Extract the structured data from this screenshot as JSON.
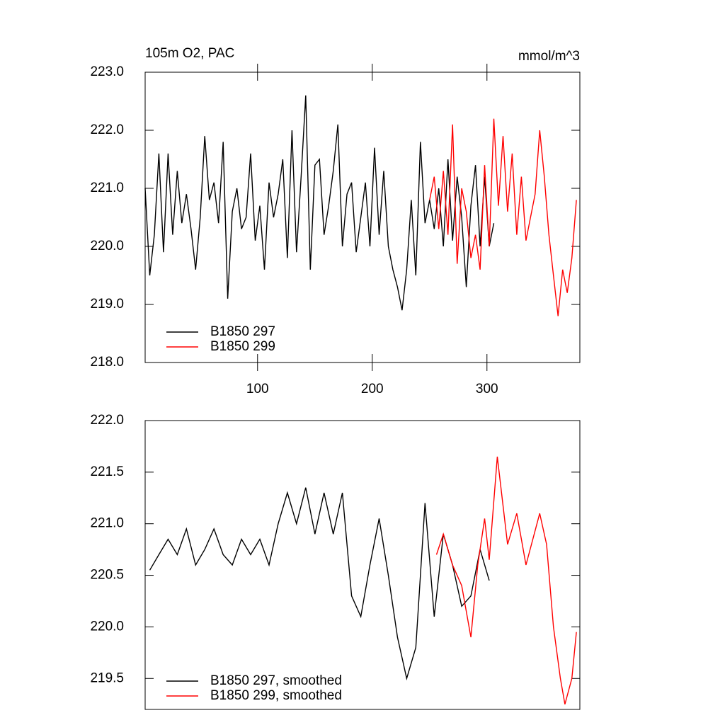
{
  "chart_data": [
    {
      "type": "line",
      "title": "105m O2, PAC",
      "units": "mmol/m^3",
      "xlim": [
        2,
        381
      ],
      "xticks": [
        100,
        200,
        300
      ],
      "ylim": [
        218,
        223
      ],
      "yticks": [
        {
          "value": 218,
          "label": "218.0"
        },
        {
          "value": 219,
          "label": "219.0"
        },
        {
          "value": 220,
          "label": "220.0"
        },
        {
          "value": 221,
          "label": "221.0"
        },
        {
          "value": 222,
          "label": "222.0"
        },
        {
          "value": 223,
          "label": "223.0"
        }
      ],
      "series": [
        {
          "name": "B1850 297",
          "color": "#000000",
          "x": [
            2,
            6,
            10,
            14,
            18,
            22,
            26,
            30,
            34,
            38,
            42,
            46,
            50,
            54,
            58,
            62,
            66,
            70,
            74,
            78,
            82,
            86,
            90,
            94,
            98,
            102,
            106,
            110,
            114,
            118,
            122,
            126,
            130,
            134,
            138,
            142,
            146,
            150,
            154,
            158,
            162,
            166,
            170,
            174,
            178,
            182,
            186,
            190,
            194,
            198,
            202,
            206,
            210,
            214,
            218,
            222,
            226,
            230,
            234,
            238,
            242,
            246,
            250,
            254,
            258,
            262,
            266,
            270,
            274,
            278,
            282,
            286,
            290,
            294,
            298,
            302,
            306
          ],
          "values": [
            221.0,
            219.5,
            220.2,
            221.6,
            219.9,
            221.6,
            220.2,
            221.3,
            220.4,
            220.9,
            220.3,
            219.6,
            220.5,
            221.9,
            220.8,
            221.1,
            220.4,
            221.8,
            219.1,
            220.6,
            221.0,
            220.3,
            220.5,
            221.6,
            220.1,
            220.7,
            219.6,
            221.1,
            220.5,
            220.9,
            221.5,
            219.8,
            222.0,
            219.9,
            221.2,
            222.6,
            219.6,
            221.4,
            221.5,
            220.2,
            220.7,
            221.3,
            222.1,
            220.0,
            220.9,
            221.1,
            219.9,
            220.5,
            221.1,
            220.0,
            221.7,
            220.2,
            221.3,
            220.0,
            219.6,
            219.3,
            218.9,
            219.6,
            220.8,
            219.5,
            221.8,
            220.4,
            220.8,
            220.3,
            221.0,
            220.0,
            221.5,
            220.1,
            221.2,
            220.5,
            219.3,
            220.7,
            221.4,
            220.0,
            221.2,
            220.0,
            220.4
          ]
        },
        {
          "name": "B1850 299",
          "color": "#ff0000",
          "x": [
            250,
            254,
            258,
            262,
            266,
            270,
            274,
            278,
            282,
            286,
            290,
            294,
            298,
            302,
            306,
            310,
            314,
            318,
            322,
            326,
            330,
            334,
            338,
            342,
            346,
            350,
            354,
            358,
            362,
            366,
            370,
            374,
            378
          ],
          "values": [
            220.8,
            221.2,
            220.3,
            221.3,
            220.2,
            222.1,
            219.7,
            221.0,
            220.6,
            219.8,
            220.2,
            219.6,
            221.4,
            220.0,
            222.2,
            220.7,
            221.9,
            220.6,
            221.6,
            220.2,
            221.2,
            220.1,
            220.5,
            220.9,
            222.0,
            221.2,
            220.2,
            219.5,
            218.8,
            219.6,
            219.2,
            219.8,
            220.8
          ]
        }
      ]
    },
    {
      "type": "line",
      "xlim": [
        2,
        381
      ],
      "ylim": [
        219.2,
        222
      ],
      "yticks": [
        219.5,
        {
          "value": 220,
          "label": "220.0"
        },
        220.5,
        {
          "value": 221,
          "label": "221.0"
        },
        221.5,
        {
          "value": 222,
          "label": "222.0"
        }
      ],
      "series": [
        {
          "name": "B1850 297, smoothed",
          "color": "#000000",
          "x": [
            6,
            14,
            22,
            30,
            38,
            46,
            54,
            62,
            70,
            78,
            86,
            94,
            102,
            110,
            118,
            126,
            134,
            142,
            150,
            158,
            166,
            174,
            182,
            190,
            198,
            206,
            214,
            222,
            230,
            238,
            246,
            254,
            262,
            270,
            278,
            286,
            294,
            302
          ],
          "values": [
            220.55,
            220.7,
            220.85,
            220.7,
            220.95,
            220.6,
            220.75,
            220.95,
            220.7,
            220.6,
            220.85,
            220.7,
            220.85,
            220.6,
            221.0,
            221.3,
            221.0,
            221.35,
            220.9,
            221.3,
            220.9,
            221.3,
            220.3,
            220.1,
            220.6,
            221.05,
            220.5,
            219.9,
            219.5,
            219.8,
            221.2,
            220.1,
            220.9,
            220.6,
            220.2,
            220.3,
            220.75,
            220.45
          ]
        },
        {
          "name": "B1850 299, smoothed",
          "color": "#ff0000",
          "x": [
            256,
            262,
            270,
            278,
            286,
            292,
            298,
            302,
            309,
            318,
            326,
            334,
            346,
            352,
            358,
            364,
            368,
            374,
            378
          ],
          "values": [
            220.7,
            220.9,
            220.6,
            220.4,
            219.9,
            220.6,
            221.05,
            220.65,
            221.65,
            220.8,
            221.1,
            220.6,
            221.1,
            220.8,
            220.0,
            219.5,
            219.25,
            219.5,
            219.95
          ]
        }
      ]
    }
  ]
}
